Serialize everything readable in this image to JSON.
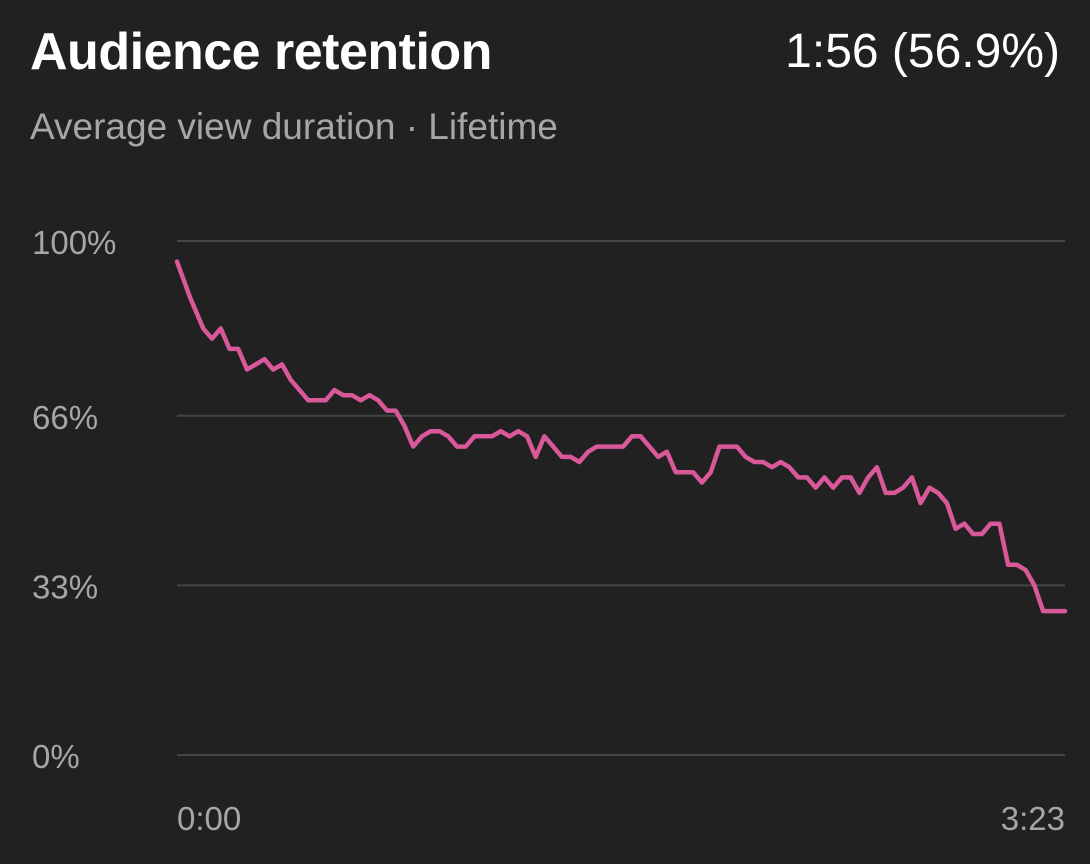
{
  "header": {
    "title": "Audience retention",
    "metric": "1:56 (56.9%)",
    "subtitle": "Average view duration · Lifetime"
  },
  "colors": {
    "line": "#d8589a",
    "background": "#212121",
    "grid": "#454545"
  },
  "chart_data": {
    "type": "line",
    "title": "Audience retention",
    "subtitle": "Average view duration · Lifetime",
    "yticks": [
      {
        "value": 100,
        "label": "100%"
      },
      {
        "value": 66,
        "label": "66%"
      },
      {
        "value": 33,
        "label": "33%"
      },
      {
        "value": 0,
        "label": "0%"
      }
    ],
    "xticks": [
      {
        "value": 0,
        "label": "0:00"
      },
      {
        "value": 203,
        "label": "3:23"
      }
    ],
    "xlim": [
      0,
      203
    ],
    "ylim": [
      0,
      100
    ],
    "grid": true,
    "series": [
      {
        "x": [
          0,
          3,
          6,
          8,
          10,
          12,
          14,
          16,
          18,
          20,
          22,
          24,
          26,
          28,
          30,
          32,
          34,
          36,
          38,
          40,
          42,
          44,
          46,
          48,
          50,
          52,
          54,
          56,
          58,
          60,
          62,
          64,
          66,
          68,
          70,
          72,
          74,
          76,
          78,
          80,
          82,
          84,
          86,
          88,
          90,
          92,
          94,
          96,
          98,
          100,
          102,
          104,
          106,
          108,
          110,
          112,
          114,
          116,
          118,
          120,
          122,
          124,
          126,
          128,
          130,
          132,
          134,
          136,
          138,
          140,
          142,
          144,
          146,
          148,
          150,
          152,
          154,
          156,
          158,
          160,
          162,
          164,
          166,
          168,
          170,
          172,
          174,
          176,
          178,
          180,
          182,
          184,
          186,
          188,
          190,
          192,
          194,
          196,
          198,
          200,
          203
        ],
        "values": [
          96,
          89,
          83,
          81,
          83,
          79,
          79,
          75,
          76,
          77,
          75,
          76,
          73,
          71,
          69,
          69,
          69,
          71,
          70,
          70,
          69,
          70,
          69,
          67,
          67,
          64,
          60,
          62,
          63,
          63,
          62,
          60,
          60,
          62,
          62,
          62,
          63,
          62,
          63,
          62,
          58,
          62,
          60,
          58,
          58,
          57,
          59,
          60,
          60,
          60,
          60,
          62,
          62,
          60,
          58,
          59,
          55,
          55,
          55,
          53,
          55,
          60,
          60,
          60,
          58,
          57,
          57,
          56,
          57,
          56,
          54,
          54,
          52,
          54,
          52,
          54,
          54,
          51,
          54,
          56,
          51,
          51,
          52,
          54,
          49,
          52,
          51,
          49,
          44,
          45,
          43,
          43,
          45,
          45,
          37,
          37,
          36,
          33,
          28,
          28,
          28
        ]
      }
    ]
  }
}
